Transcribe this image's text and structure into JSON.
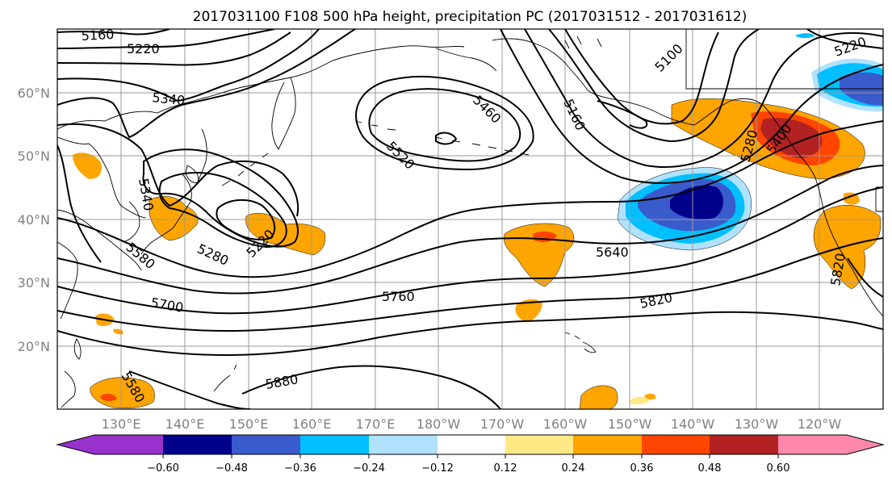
{
  "title": "2017031100 F108 500 hPa height, precipitation PC (2017031512 - 2017031612)",
  "lat_labels": [
    "60°N",
    "50°N",
    "40°N",
    "30°N",
    "20°N"
  ],
  "lon_labels": [
    "130°E",
    "140°E",
    "150°E",
    "160°E",
    "170°E",
    "180°W",
    "170°W",
    "160°W",
    "150°W",
    "140°W",
    "130°W",
    "120°W"
  ],
  "contour_labels": {
    "c5160": "5160",
    "c5220a": "5220",
    "c5340a": "5340",
    "c5340b": "5340",
    "c5460": "5460",
    "c5520": "5520",
    "c5580a": "5580",
    "c5220b": "5220",
    "c5280": "5280",
    "c5640": "5640",
    "c5700": "5700",
    "c5760": "5760",
    "c5820a": "5820",
    "c5880": "5880",
    "c5580b": "5580",
    "c5820b": "5820",
    "c5100": "5100",
    "c5220c": "5220",
    "c5160b": "5160",
    "c5280b": "5280",
    "c5400": "5400"
  },
  "colorbar": {
    "ticks": [
      "−0.60",
      "−0.48",
      "−0.36",
      "−0.24",
      "−0.12",
      "0.12",
      "0.24",
      "0.36",
      "0.48",
      "0.60"
    ],
    "colors": [
      "#9932cc",
      "#00008b",
      "#3a5bcc",
      "#00bfff",
      "#b0e2ff",
      "#ffffff",
      "#ffe985",
      "#ffa500",
      "#ff4500",
      "#b22222",
      "#ff88aa"
    ]
  },
  "colors": {
    "pos_light": "#ffe985",
    "pos_orange": "#ffa500",
    "pos_red": "#ff4500",
    "pos_darkred": "#b22222",
    "neg_lightblue": "#b0e2ff",
    "neg_cyan": "#00bfff",
    "neg_blue": "#3a5bcc",
    "neg_navy": "#00008b"
  }
}
